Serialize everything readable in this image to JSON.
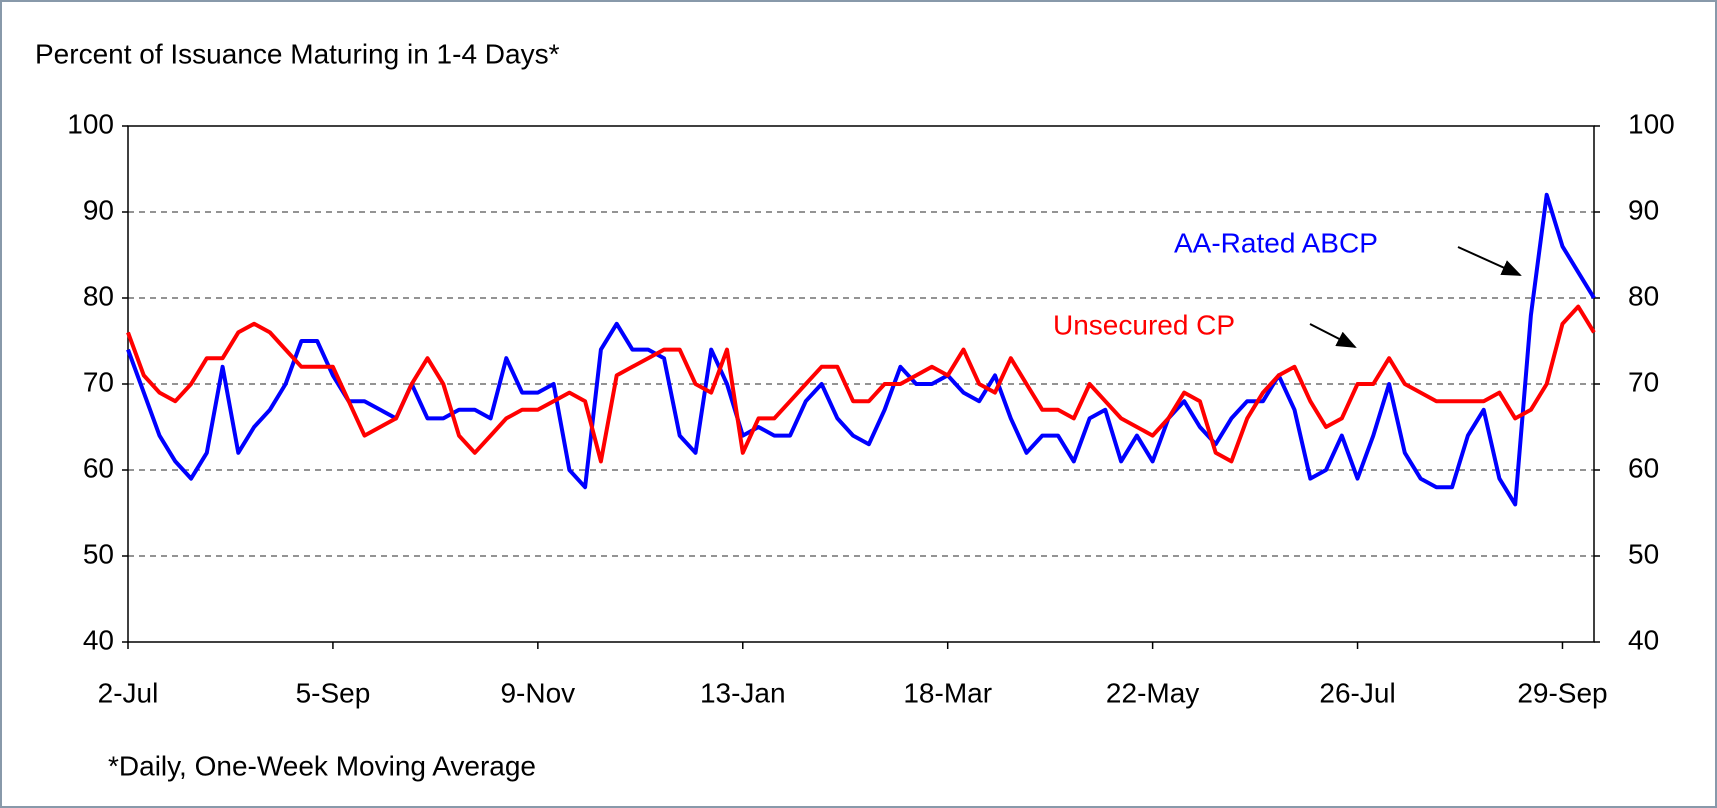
{
  "chart_data": {
    "type": "line",
    "title": "Percent of Issuance Maturing in 1-4 Days*",
    "footnote": "*Daily, One-Week Moving Average",
    "annotations": [
      "AA-Rated ABCP",
      "Unsecured CP"
    ],
    "categories": [
      "2-Jul",
      null,
      null,
      null,
      null,
      null,
      null,
      null,
      null,
      null,
      null,
      null,
      null,
      "5-Sep",
      null,
      null,
      null,
      null,
      null,
      null,
      null,
      null,
      null,
      null,
      null,
      null,
      "9-Nov",
      null,
      null,
      null,
      null,
      null,
      null,
      null,
      null,
      null,
      null,
      null,
      null,
      "13-Jan",
      null,
      null,
      null,
      null,
      null,
      null,
      null,
      null,
      null,
      null,
      null,
      null,
      "18-Mar",
      null,
      null,
      null,
      null,
      null,
      null,
      null,
      null,
      null,
      null,
      null,
      null,
      "22-May",
      null,
      null,
      null,
      null,
      null,
      null,
      null,
      null,
      null,
      null,
      null,
      null,
      "26-Jul",
      null,
      null,
      null,
      null,
      null,
      null,
      null,
      null,
      null,
      null,
      null,
      null,
      "29-Sep",
      null,
      null
    ],
    "series": [
      {
        "name": "AA-Rated ABCP",
        "color": "#0000ff",
        "values": [
          74,
          69,
          64,
          61,
          59,
          62,
          72,
          62,
          65,
          67,
          70,
          75,
          75,
          71,
          68,
          68,
          67,
          66,
          70,
          66,
          66,
          67,
          67,
          66,
          73,
          69,
          69,
          70,
          60,
          58,
          74,
          77,
          74,
          74,
          73,
          64,
          62,
          74,
          70,
          64,
          65,
          64,
          64,
          68,
          70,
          66,
          64,
          63,
          67,
          72,
          70,
          70,
          71,
          69,
          68,
          71,
          66,
          62,
          64,
          64,
          61,
          66,
          67,
          61,
          64,
          61,
          66,
          68,
          65,
          63,
          66,
          68,
          68,
          71,
          67,
          59,
          60,
          64,
          59,
          64,
          70,
          62,
          59,
          58,
          58,
          64,
          67,
          59,
          56,
          78,
          92,
          86,
          83,
          80
        ]
      },
      {
        "name": "Unsecured CP",
        "color": "#ff0000",
        "values": [
          76,
          71,
          69,
          68,
          70,
          73,
          73,
          76,
          77,
          76,
          74,
          72,
          72,
          72,
          68,
          64,
          65,
          66,
          70,
          73,
          70,
          64,
          62,
          64,
          66,
          67,
          67,
          68,
          69,
          68,
          61,
          71,
          72,
          73,
          74,
          74,
          70,
          69,
          74,
          62,
          66,
          66,
          68,
          70,
          72,
          72,
          68,
          68,
          70,
          70,
          71,
          72,
          71,
          74,
          70,
          69,
          73,
          70,
          67,
          67,
          66,
          70,
          68,
          66,
          65,
          64,
          66,
          69,
          68,
          62,
          61,
          66,
          69,
          71,
          72,
          68,
          65,
          66,
          70,
          70,
          73,
          70,
          69,
          68,
          68,
          68,
          68,
          69,
          66,
          67,
          70,
          77,
          79,
          76
        ]
      }
    ],
    "ylim": [
      40,
      100
    ],
    "yticks": [
      40,
      50,
      60,
      70,
      80,
      90,
      100
    ],
    "y2lim": [
      40,
      100
    ],
    "y2ticks": [
      40,
      50,
      60,
      70,
      80,
      90,
      100
    ],
    "grid": true
  }
}
